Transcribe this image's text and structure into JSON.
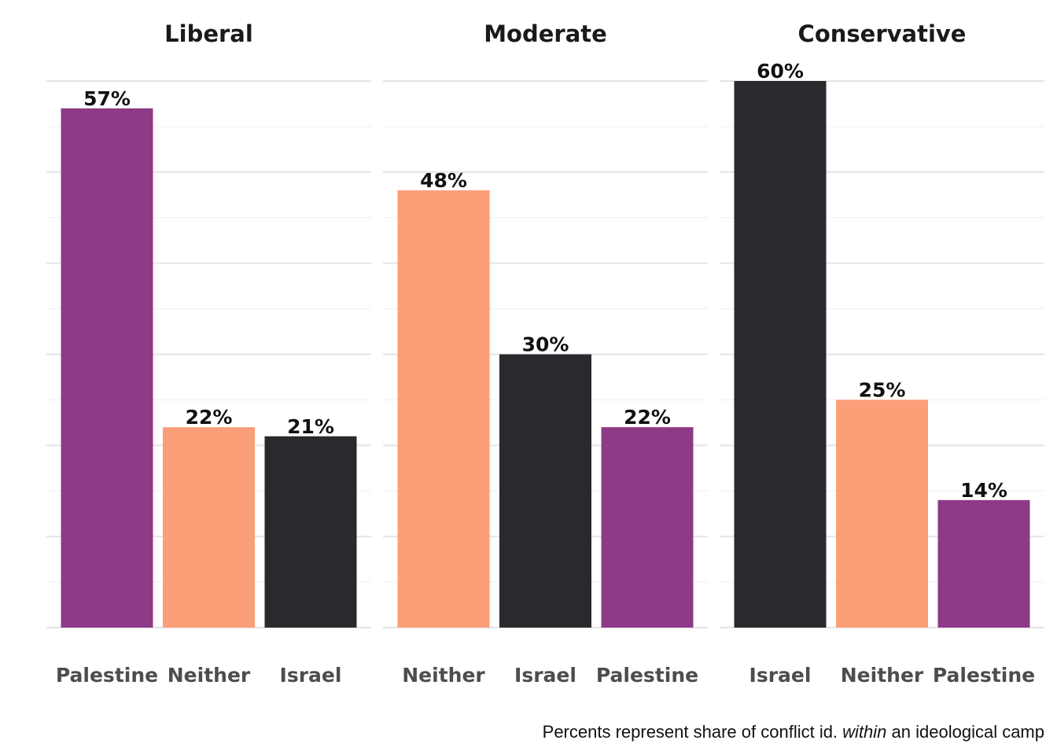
{
  "chart_data": [
    {
      "type": "bar",
      "title": "Liberal",
      "categories": [
        "Palestine",
        "Neither",
        "Israel"
      ],
      "values": [
        57,
        22,
        21
      ],
      "value_labels": [
        "57%",
        "22%",
        "21%"
      ],
      "colors": [
        "#8e3a86",
        "#fa9f78",
        "#2a292e"
      ],
      "ylim": [
        0,
        60
      ],
      "grid": true,
      "xlabel": "",
      "ylabel": ""
    },
    {
      "type": "bar",
      "title": "Moderate",
      "categories": [
        "Neither",
        "Israel",
        "Palestine"
      ],
      "values": [
        48,
        30,
        22
      ],
      "value_labels": [
        "48%",
        "30%",
        "22%"
      ],
      "colors": [
        "#fa9f78",
        "#2a292e",
        "#8e3a86"
      ],
      "ylim": [
        0,
        60
      ],
      "grid": true,
      "xlabel": "",
      "ylabel": ""
    },
    {
      "type": "bar",
      "title": "Conservative",
      "categories": [
        "Israel",
        "Neither",
        "Palestine"
      ],
      "values": [
        60,
        25,
        14
      ],
      "value_labels": [
        "60%",
        "25%",
        "14%"
      ],
      "colors": [
        "#2a292e",
        "#fa9f78",
        "#8e3a86"
      ],
      "ylim": [
        0,
        60
      ],
      "grid": true,
      "xlabel": "",
      "ylabel": ""
    }
  ],
  "caption": {
    "before": "Percents represent share of conflict id. ",
    "emphasis": "within",
    "after": " an ideological camp"
  }
}
